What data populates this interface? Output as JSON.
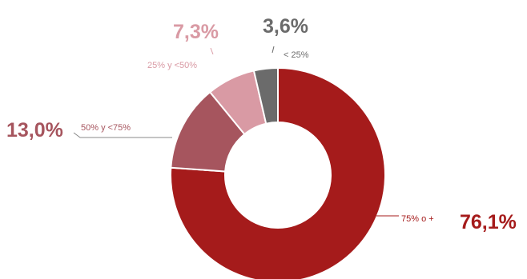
{
  "chart_data": {
    "type": "pie",
    "style": "donut",
    "title": "",
    "slices": [
      {
        "category": "75% o +",
        "value": 76.1,
        "label": "76,1%",
        "color": "#a51b1b"
      },
      {
        "category": "50% y <75%",
        "value": 13.0,
        "label": "13,0%",
        "color": "#a6555e"
      },
      {
        "category": "25% y <50%",
        "value": 7.3,
        "label": "7,3%",
        "color": "#d99aa4"
      },
      {
        "category": "< 25%",
        "value": 3.6,
        "label": "3,6%",
        "color": "#6b6b6b"
      }
    ],
    "legend": "none"
  }
}
